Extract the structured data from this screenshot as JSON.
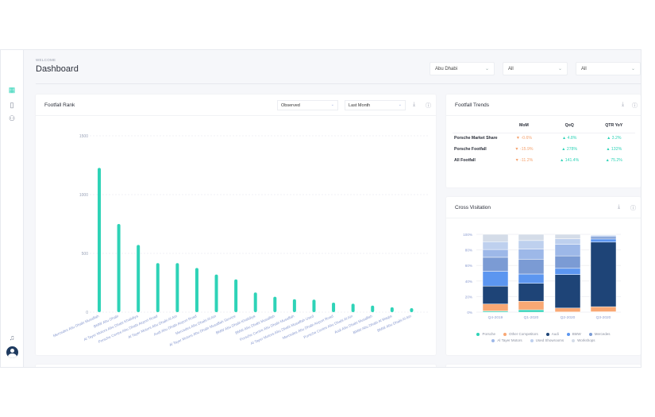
{
  "header": {
    "welcome": "WELCOME",
    "title": "Dashboard",
    "filters": [
      "Abu Dhabi",
      "All",
      "All"
    ]
  },
  "sidebar": {
    "items": [
      "dashboard-icon",
      "book-icon",
      "users-icon"
    ],
    "bottom": [
      "bell-icon",
      "avatar"
    ]
  },
  "footfall_rank": {
    "title": "Footfall Rank",
    "mode": "Observed",
    "period": "Last Month"
  },
  "footfall_trends": {
    "title": "Footfall Trends",
    "columns": [
      "MoM",
      "QoQ",
      "QTR YoY"
    ],
    "rows": [
      {
        "label": "Porsche Market Share",
        "values": [
          "-0.6%",
          "4.8%",
          "3.2%"
        ],
        "dirs": [
          "down",
          "up",
          "up"
        ]
      },
      {
        "label": "Porsche Footfall",
        "values": [
          "-15.9%",
          "278%",
          "132%"
        ],
        "dirs": [
          "down",
          "up",
          "up"
        ]
      },
      {
        "label": "All Footfall",
        "values": [
          "-11.2%",
          "141.4%",
          "75.2%"
        ],
        "dirs": [
          "down",
          "up",
          "up"
        ]
      }
    ]
  },
  "cross_visitation": {
    "title": "Cross Visitation"
  },
  "colors": {
    "accent": "#2ed3b7",
    "negative": "#f5a26e"
  },
  "chart_data": [
    {
      "type": "bar",
      "categories": [
        "Mercedes Abu Dhabi Musaffah",
        "BMW Abu Dhabi",
        "Al Tayer Motors Abu Dhabi Khalidiya",
        "Porsche Centre Abu Dhabi Airport Road",
        "Al Tayer Motors Abu Dhabi Al Ain",
        "Audi Abu Dhabi Airport Road",
        "Mercedes Abu Dhabi Al Ain",
        "Al Tayer Motors Abu Dhabi Musaffah Service",
        "BMW Abu Dhabi Khalidiya",
        "BMW Abu Dhabi Musaffah",
        "Porsche Centre Abu Dhabi Musaffah",
        "Al Tayer Motors Abu Dhabi Musaffah Used",
        "Mercedes Abu Dhabi Airport Road",
        "Porsche Centre Abu Dhabi Al Ain",
        "Audi Abu Dhabi Musaffah",
        "BMW Abu Dhabi Al Maqta",
        "BMW Abu Dhabi Al Ain"
      ],
      "values": [
        1227,
        750,
        572,
        417,
        417,
        376,
        320,
        279,
        167,
        131,
        110,
        106,
        81,
        72,
        56,
        41,
        34
      ],
      "yticks": [
        "0",
        "500",
        "1000",
        "1500"
      ],
      "ylim": [
        0,
        1500
      ],
      "grid": true,
      "color": "#2ed3b7"
    },
    {
      "type": "bar",
      "stacked": true,
      "categories": [
        "Q4-2019",
        "Q1-2020",
        "Q2-2020",
        "Q3-2020"
      ],
      "yticks": [
        "0%",
        "20%",
        "40%",
        "60%",
        "80%",
        "100%"
      ],
      "ylim": [
        0,
        100
      ],
      "legend": "bottom",
      "series": [
        {
          "name": "Porsche",
          "color": "#2ed3b7",
          "values": [
            1.5,
            3,
            0.3,
            0.5
          ]
        },
        {
          "name": "Other Competitors",
          "color": "#f9a874",
          "values": [
            9,
            11,
            5,
            6.5
          ]
        },
        {
          "name": "Audi",
          "color": "#1e4477",
          "values": [
            23,
            23,
            43,
            83
          ]
        },
        {
          "name": "BMW",
          "color": "#5c96f0",
          "values": [
            19,
            12,
            8,
            4
          ]
        },
        {
          "name": "Mercedes",
          "color": "#7b9bd4",
          "values": [
            18,
            19,
            16,
            3
          ]
        },
        {
          "name": "Al Tayer Motors",
          "color": "#9db8e8",
          "values": [
            10,
            13,
            15,
            1.5
          ]
        },
        {
          "name": "Used Showrooms",
          "color": "#bed0ee",
          "values": [
            10,
            11,
            7,
            1
          ]
        },
        {
          "name": "Workshops",
          "color": "#d4dce8",
          "values": [
            9.5,
            8,
            5.7,
            0.5
          ]
        }
      ]
    }
  ]
}
